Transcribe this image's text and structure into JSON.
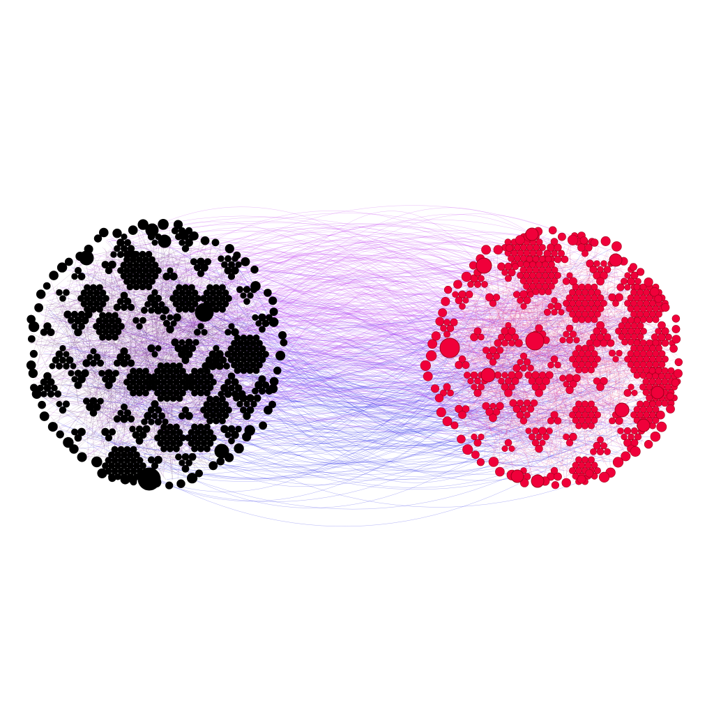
{
  "graph": {
    "background": "#ffffff",
    "left_cluster": {
      "node_fill": "#000000",
      "node_stroke": "#000000",
      "internal_edge_colors": [
        "#6b2c7a",
        "#4a1f55",
        "#8a3a9a"
      ]
    },
    "right_cluster": {
      "node_fill": "#f0003a",
      "node_stroke": "#a0001c",
      "internal_edge_colors": [
        "#e0397a",
        "#b0208a",
        "#ff5a8a"
      ]
    },
    "bridge_edges": {
      "upper_color": "#c03cf0",
      "middle_color": "#8a30f0",
      "lower_color": "#2020e8"
    }
  }
}
